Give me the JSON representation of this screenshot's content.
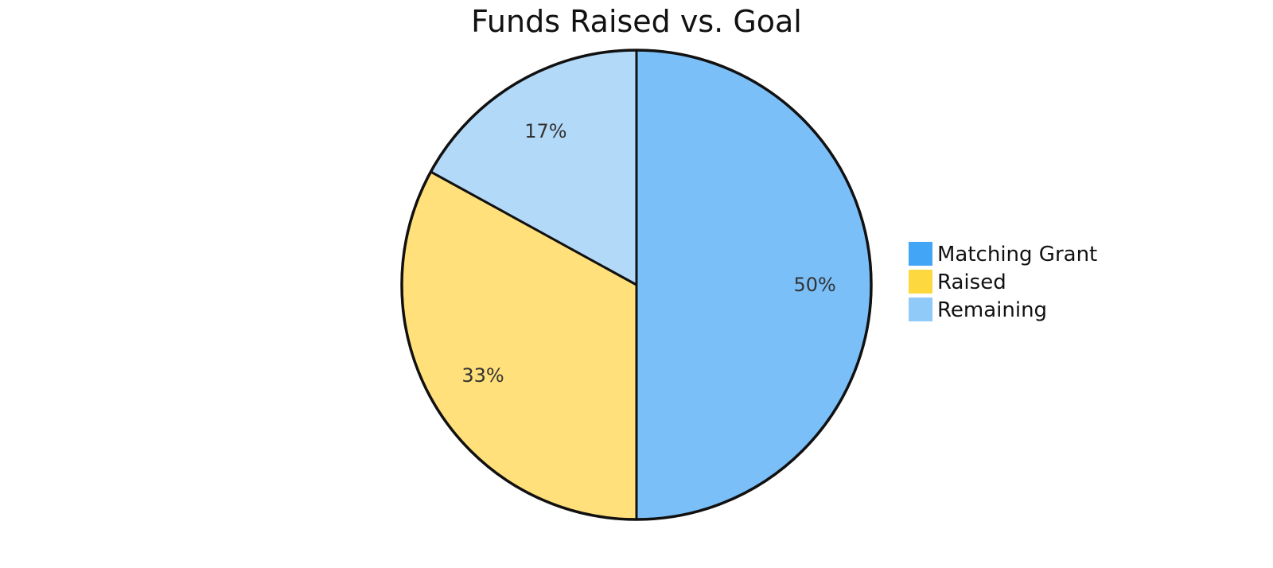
{
  "chart_data": {
    "type": "pie",
    "title": "Funds Raised vs. Goal",
    "slices": [
      {
        "name": "Matching Grant",
        "value": 50,
        "label": "50%",
        "color": "#7bbff8",
        "legend_color": "#42a5f5"
      },
      {
        "name": "Raised",
        "value": 33,
        "label": "33%",
        "color": "#ffe07a",
        "legend_color": "#fdd83f"
      },
      {
        "name": "Remaining",
        "value": 17,
        "label": "17%",
        "color": "#b3d9f9",
        "legend_color": "#90caf9"
      }
    ],
    "legend": {
      "placement": "right"
    }
  }
}
